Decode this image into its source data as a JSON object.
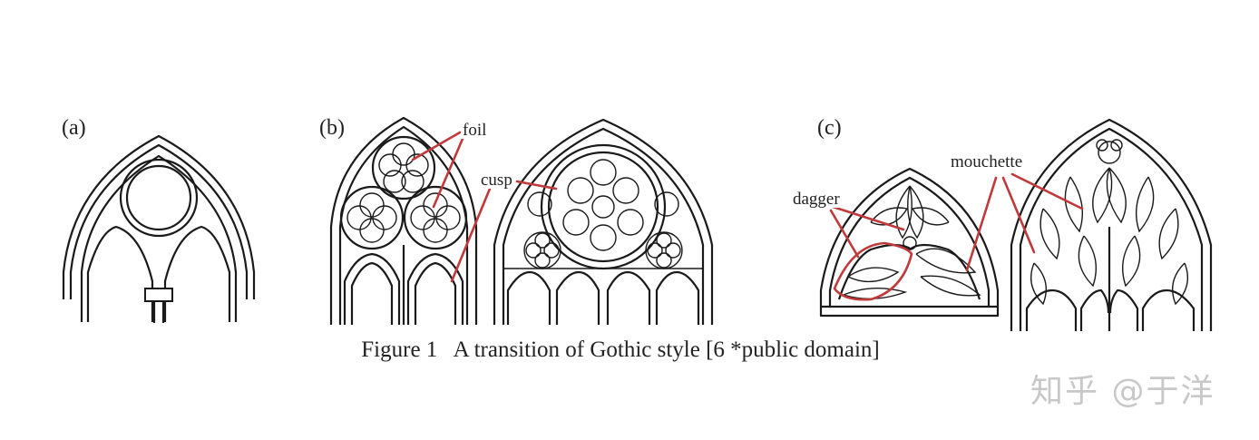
{
  "panels": {
    "a": {
      "label": "(a)"
    },
    "b": {
      "label": "(b)",
      "terms": {
        "foil": "foil",
        "cusp": "cusp"
      }
    },
    "c": {
      "label": "(c)",
      "terms": {
        "dagger": "dagger",
        "mouchette": "mouchette"
      }
    }
  },
  "caption": "Figure 1   A transition of Gothic style [6 *public domain]",
  "watermark": "知乎 @于洋",
  "colors": {
    "ink": "#1a1a1a",
    "leader": "#c0393b",
    "watermark": "#c8c8c8"
  }
}
